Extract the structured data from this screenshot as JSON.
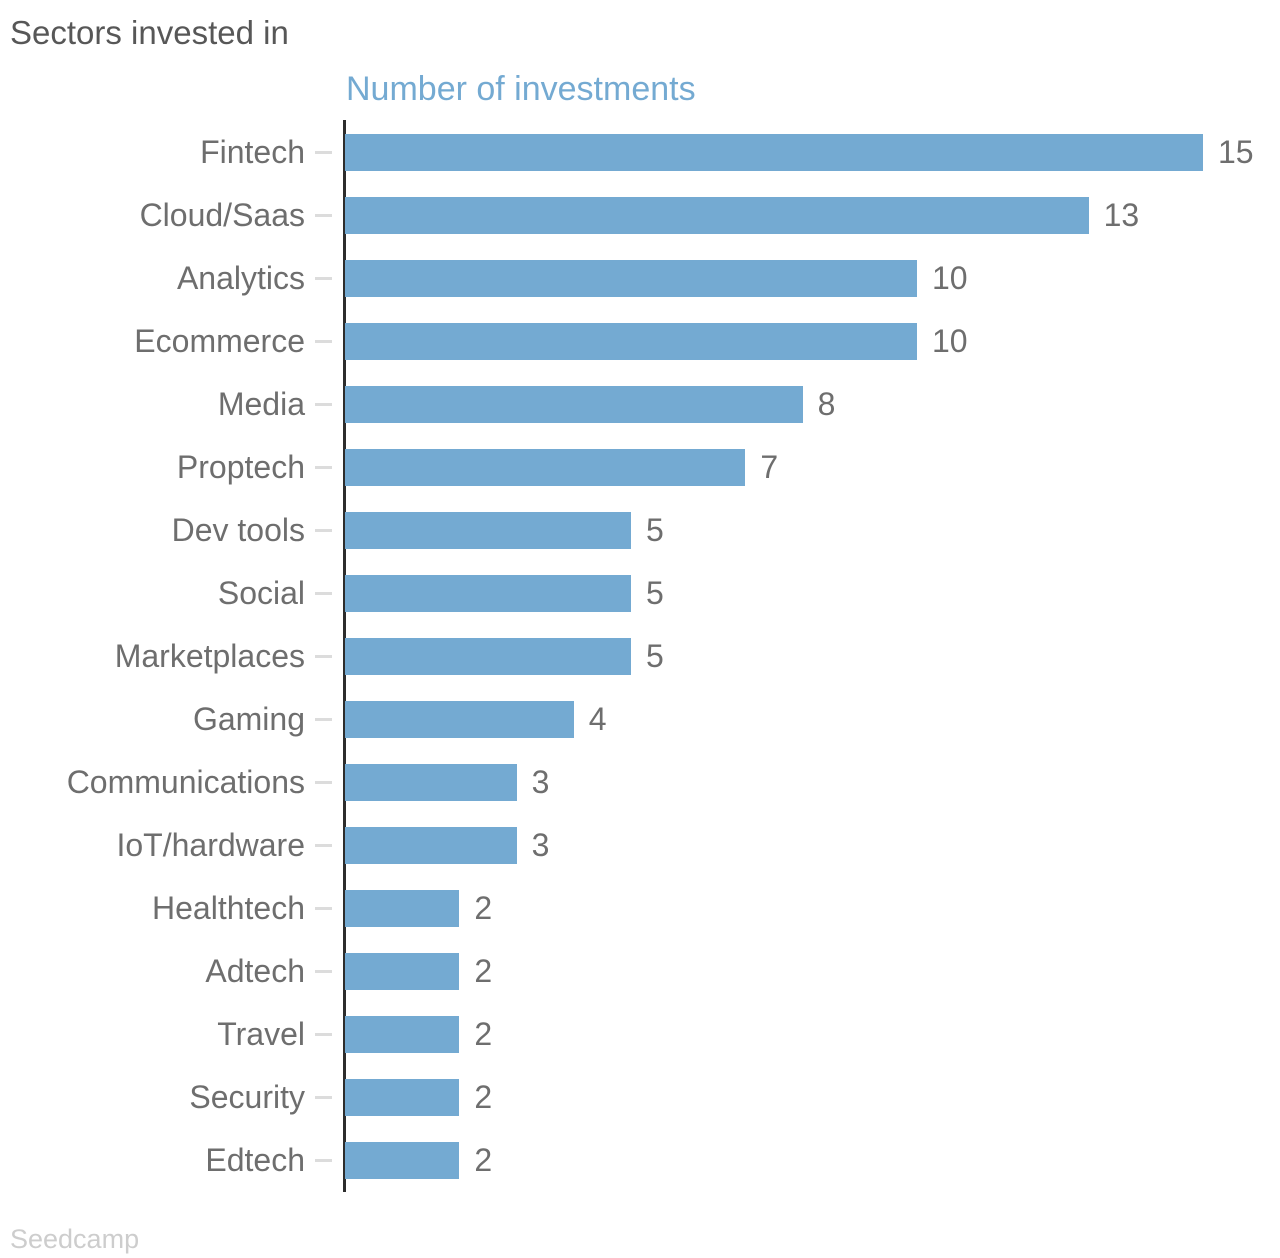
{
  "header": {
    "title": "Sectors invested in"
  },
  "footer": {
    "source": "Seedcamp"
  },
  "chart_data": {
    "type": "bar",
    "orientation": "horizontal",
    "title": "Sectors invested in",
    "axis_title": "Number of investments",
    "categories": [
      "Fintech",
      "Cloud/Saas",
      "Analytics",
      "Ecommerce",
      "Media",
      "Proptech",
      "Dev tools",
      "Social",
      "Marketplaces",
      "Gaming",
      "Communications",
      "IoT/hardware",
      "Healthtech",
      "Adtech",
      "Travel",
      "Security",
      "Edtech"
    ],
    "values": [
      15,
      13,
      10,
      10,
      8,
      7,
      5,
      5,
      5,
      4,
      3,
      3,
      2,
      2,
      2,
      2,
      2
    ],
    "xlim": [
      0,
      15
    ],
    "grid": false,
    "legend": "none",
    "value_labels": "end-of-bar",
    "bar_color": "#74aad2",
    "label_color": "#6e6e6e",
    "axis_color": "#2d2d2d",
    "tick_color": "#dcdcdc",
    "title_color": "#575757",
    "subtitle_color": "#74aad2",
    "source_color": "#cdcdcd"
  }
}
